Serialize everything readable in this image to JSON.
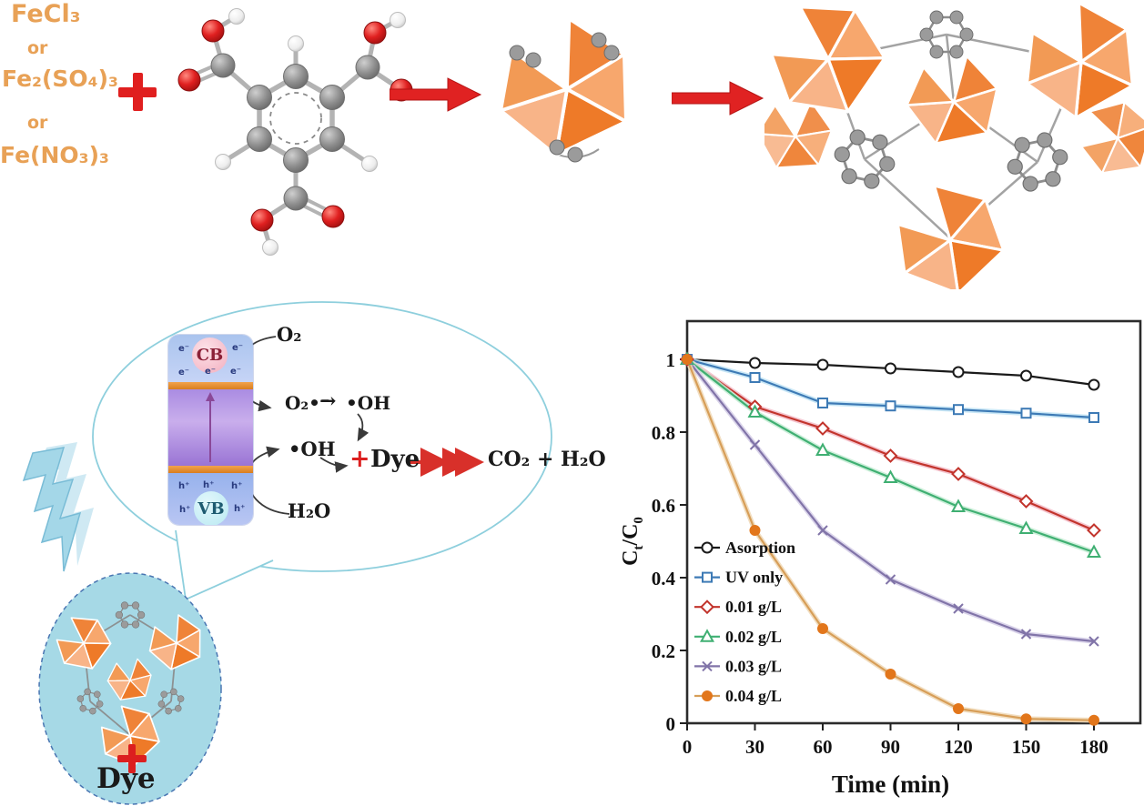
{
  "figure": {
    "reagents": {
      "option1": "FeCl₃",
      "or1": "or",
      "option2": "Fe₂(SO₄)₃",
      "or2": "or",
      "option3": "Fe(NO₃)₃",
      "plus": "+"
    },
    "mechanism": {
      "cb": "CB",
      "vb": "VB",
      "electrons": [
        "e⁻",
        "e⁻",
        "e⁻",
        "e⁻",
        "e⁻"
      ],
      "holes": [
        "h⁺",
        "h⁺",
        "h⁺",
        "h⁺",
        "h⁺"
      ],
      "o2": "O₂",
      "superoxide": "O₂•⁻",
      "to_arrow": "→",
      "oh_upper": "•OH",
      "oh_lower": "•OH",
      "h2o": "H₂O",
      "plus": "+",
      "dye": "Dye",
      "products": "CO₂ + H₂O"
    },
    "photolysis": {
      "plus": "+",
      "dye": "Dye"
    }
  },
  "icons": {
    "plus_icon": "cross-shape",
    "reaction_arrow_icon": "block-arrow-right",
    "lightning_icon": "zigzag-bolt",
    "degradation_arrow_icon": "red-dashed-arrow"
  },
  "colors": {
    "reagent_text": "#e8a156",
    "reaction_arrow": "#e02222",
    "plus_sign": "#dc1f1f",
    "polyhedra_orange": "#f08438",
    "oval_fill": "#a6d9e6",
    "bubble_outline": "#8ecfdd",
    "lightning_blue": "#a4d7e8"
  },
  "chart_data": {
    "type": "line",
    "title": "",
    "xlabel": "Time (min)",
    "ylabel": "Ct/C0",
    "ylabel_parts": [
      {
        "t": "C",
        "sub": false
      },
      {
        "t": "t",
        "sub": true
      },
      {
        "t": "/C",
        "sub": false
      },
      {
        "t": "0",
        "sub": true
      }
    ],
    "x": [
      0,
      30,
      60,
      90,
      120,
      150,
      180
    ],
    "xticks": [
      0,
      30,
      60,
      90,
      120,
      150,
      180
    ],
    "yticks": [
      0,
      0.2,
      0.4,
      0.6,
      0.8,
      1
    ],
    "xlim": [
      0,
      195
    ],
    "ylim": [
      0,
      1.1
    ],
    "grid": false,
    "legend_position": "inside-left",
    "series": [
      {
        "name": "Asorption",
        "color": "#1a1a1a",
        "marker": "circle-open",
        "values": [
          1,
          0.99,
          0.985,
          0.975,
          0.965,
          0.955,
          0.93
        ]
      },
      {
        "name": "UV only",
        "color": "#3d7ab5",
        "halo": "#bfe3f5",
        "marker": "square-open",
        "values": [
          1,
          0.95,
          0.88,
          0.872,
          0.862,
          0.852,
          0.84
        ]
      },
      {
        "name": "0.01 g/L",
        "color": "#c2342c",
        "halo": "#f3bcc8",
        "marker": "diamond-open",
        "values": [
          1,
          0.87,
          0.81,
          0.735,
          0.685,
          0.61,
          0.53
        ]
      },
      {
        "name": "0.02 g/L",
        "color": "#3faf72",
        "halo": "#c4ecd4",
        "marker": "triangle-open",
        "values": [
          1,
          0.855,
          0.75,
          0.675,
          0.595,
          0.535,
          0.47
        ]
      },
      {
        "name": "0.03 g/L",
        "color": "#8174a8",
        "halo": "#d4cde6",
        "marker": "x",
        "values": [
          1,
          0.765,
          0.53,
          0.395,
          0.315,
          0.245,
          0.225
        ]
      },
      {
        "name": "0.04 g/L",
        "color": "#e2761b",
        "line_color": "#d79e58",
        "halo": "#eed7b4",
        "marker": "circle-filled",
        "values": [
          1,
          0.53,
          0.26,
          0.135,
          0.04,
          0.012,
          0.008
        ]
      }
    ]
  }
}
